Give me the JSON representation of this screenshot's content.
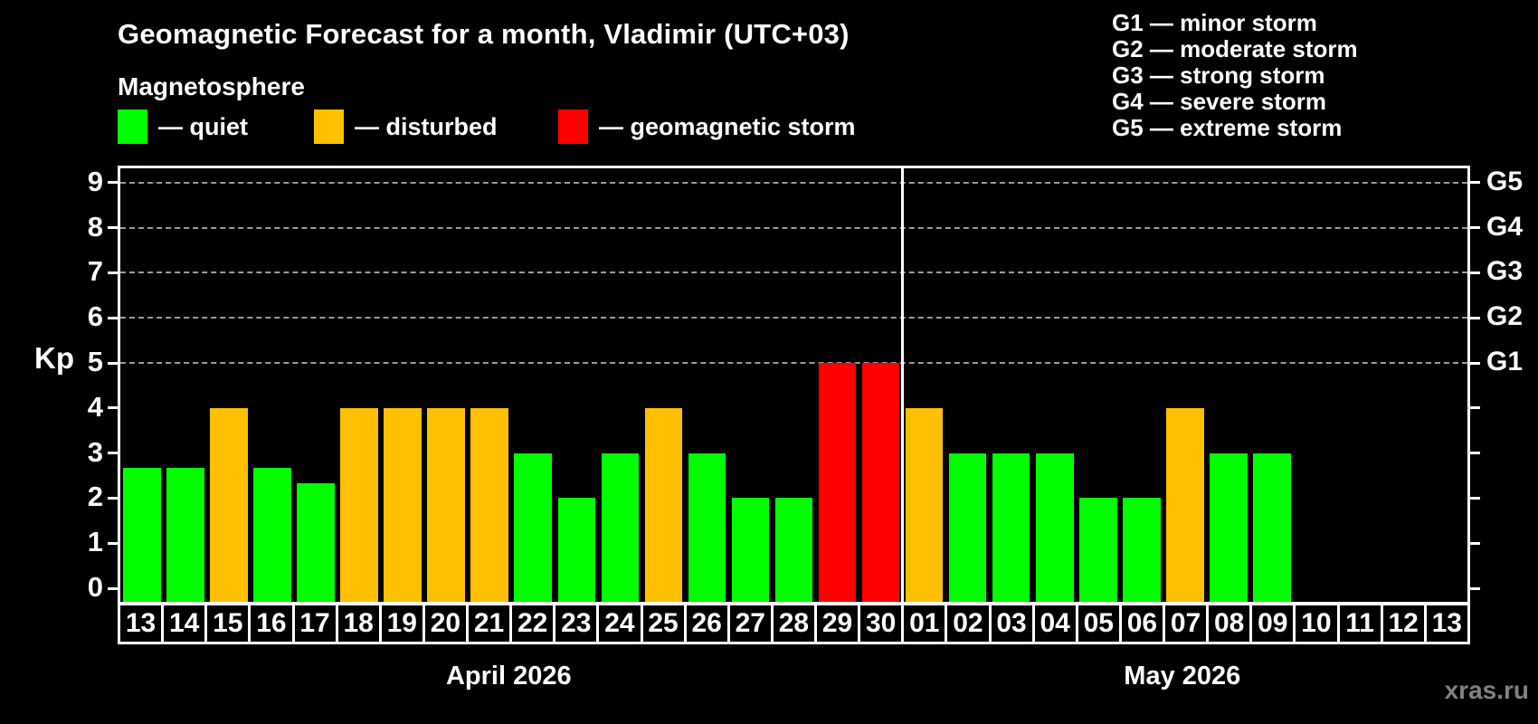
{
  "title": "Geomagnetic Forecast for a month, Vladimir (UTC+03)",
  "subtitle": "Magnetosphere",
  "watermark": "xras.ru",
  "colors": {
    "quiet": "#00ff00",
    "disturbed": "#ffc000",
    "storm": "#ff0000",
    "grid": "#9a9a9a",
    "axis": "#ffffff",
    "background": "#000000",
    "watermark": "#808080"
  },
  "legend": {
    "items": [
      {
        "status": "quiet",
        "label": "— quiet"
      },
      {
        "status": "disturbed",
        "label": "— disturbed"
      },
      {
        "status": "storm",
        "label": "— geomagnetic storm"
      }
    ]
  },
  "g_legend": {
    "items": [
      "G1 — minor storm",
      "G2 — moderate storm",
      "G3 — strong storm",
      "G4 — severe storm",
      "G5 — extreme storm"
    ]
  },
  "axis": {
    "y_label": "Kp",
    "y_ticks": [
      0,
      1,
      2,
      3,
      4,
      5,
      6,
      7,
      8,
      9
    ],
    "right_labels": [
      {
        "label": "G5",
        "kp": 9
      },
      {
        "label": "G4",
        "kp": 8
      },
      {
        "label": "G3",
        "kp": 7
      },
      {
        "label": "G2",
        "kp": 6
      },
      {
        "label": "G1",
        "kp": 5
      }
    ],
    "grid_kp": [
      5,
      6,
      7,
      8,
      9
    ]
  },
  "months": [
    {
      "label": "April 2026",
      "days": 18
    },
    {
      "label": "May 2026",
      "days": 13
    }
  ],
  "chart_data": {
    "type": "bar",
    "title": "Geomagnetic Forecast for a month, Vladimir (UTC+03)",
    "ylabel": "Kp",
    "ylim": [
      0,
      9
    ],
    "grid": "horizontal dashed lines at Kp 5,6,7,8,9 (G1..G5)",
    "legend_position": "top-left",
    "bars": [
      {
        "month": "April 2026",
        "day": "13",
        "kp": 2.67,
        "status": "quiet"
      },
      {
        "month": "April 2026",
        "day": "14",
        "kp": 2.67,
        "status": "quiet"
      },
      {
        "month": "April 2026",
        "day": "15",
        "kp": 4,
        "status": "disturbed"
      },
      {
        "month": "April 2026",
        "day": "16",
        "kp": 2.67,
        "status": "quiet"
      },
      {
        "month": "April 2026",
        "day": "17",
        "kp": 2.33,
        "status": "quiet"
      },
      {
        "month": "April 2026",
        "day": "18",
        "kp": 4,
        "status": "disturbed"
      },
      {
        "month": "April 2026",
        "day": "19",
        "kp": 4,
        "status": "disturbed"
      },
      {
        "month": "April 2026",
        "day": "20",
        "kp": 4,
        "status": "disturbed"
      },
      {
        "month": "April 2026",
        "day": "21",
        "kp": 4,
        "status": "disturbed"
      },
      {
        "month": "April 2026",
        "day": "22",
        "kp": 3,
        "status": "quiet"
      },
      {
        "month": "April 2026",
        "day": "23",
        "kp": 2,
        "status": "quiet"
      },
      {
        "month": "April 2026",
        "day": "24",
        "kp": 3,
        "status": "quiet"
      },
      {
        "month": "April 2026",
        "day": "25",
        "kp": 4,
        "status": "disturbed"
      },
      {
        "month": "April 2026",
        "day": "26",
        "kp": 3,
        "status": "quiet"
      },
      {
        "month": "April 2026",
        "day": "27",
        "kp": 2,
        "status": "quiet"
      },
      {
        "month": "April 2026",
        "day": "28",
        "kp": 2,
        "status": "quiet"
      },
      {
        "month": "April 2026",
        "day": "29",
        "kp": 5,
        "status": "storm"
      },
      {
        "month": "April 2026",
        "day": "30",
        "kp": 5,
        "status": "storm"
      },
      {
        "month": "May 2026",
        "day": "01",
        "kp": 4,
        "status": "disturbed"
      },
      {
        "month": "May 2026",
        "day": "02",
        "kp": 3,
        "status": "quiet"
      },
      {
        "month": "May 2026",
        "day": "03",
        "kp": 3,
        "status": "quiet"
      },
      {
        "month": "May 2026",
        "day": "04",
        "kp": 3,
        "status": "quiet"
      },
      {
        "month": "May 2026",
        "day": "05",
        "kp": 2,
        "status": "quiet"
      },
      {
        "month": "May 2026",
        "day": "06",
        "kp": 2,
        "status": "quiet"
      },
      {
        "month": "May 2026",
        "day": "07",
        "kp": 4,
        "status": "disturbed"
      },
      {
        "month": "May 2026",
        "day": "08",
        "kp": 3,
        "status": "quiet"
      },
      {
        "month": "May 2026",
        "day": "09",
        "kp": 3,
        "status": "quiet"
      },
      {
        "month": "May 2026",
        "day": "10",
        "kp": null,
        "status": "none"
      },
      {
        "month": "May 2026",
        "day": "11",
        "kp": null,
        "status": "none"
      },
      {
        "month": "May 2026",
        "day": "12",
        "kp": null,
        "status": "none"
      },
      {
        "month": "May 2026",
        "day": "13",
        "kp": null,
        "status": "none"
      }
    ]
  }
}
